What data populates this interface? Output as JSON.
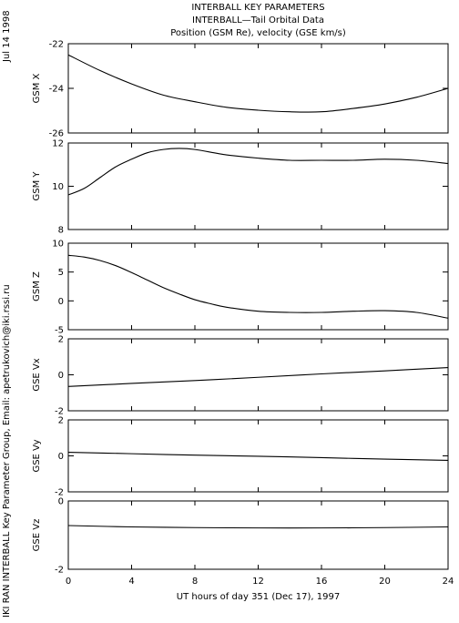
{
  "titles": {
    "line1": "INTERBALL KEY PARAMETERS",
    "line2": "INTERBALL—Tail Orbital Data",
    "line3": "Position (GSM Re), velocity (GSE km/s)"
  },
  "side_labels": {
    "date": "Jul 14 1998",
    "credit": "IKI RAN INTERBALL Key Parameter Group, Email: apetrukovich@iki.rssi.ru"
  },
  "chart_data": [
    {
      "type": "line",
      "ylabel": "GSM X",
      "ylim": [
        -26,
        -22
      ],
      "yticks": [
        "-22",
        "-24",
        "-26"
      ],
      "xlim": [
        0,
        24
      ],
      "x": [
        0,
        2,
        4,
        6,
        8,
        10,
        12,
        14,
        16,
        18,
        20,
        22,
        24
      ],
      "values": [
        -22.5,
        -23.2,
        -23.8,
        -24.3,
        -24.6,
        -24.85,
        -24.98,
        -25.05,
        -25.05,
        -24.9,
        -24.7,
        -24.4,
        -24.0
      ]
    },
    {
      "type": "line",
      "ylabel": "GSM Y",
      "ylim": [
        8,
        12
      ],
      "yticks": [
        "12",
        "10",
        "8"
      ],
      "xlim": [
        0,
        24
      ],
      "x": [
        0,
        1,
        2,
        3,
        4,
        5,
        6,
        7,
        8,
        10,
        12,
        14,
        16,
        18,
        20,
        22,
        24
      ],
      "values": [
        9.6,
        9.9,
        10.4,
        10.9,
        11.25,
        11.55,
        11.7,
        11.75,
        11.7,
        11.45,
        11.3,
        11.2,
        11.2,
        11.2,
        11.25,
        11.2,
        11.05
      ]
    },
    {
      "type": "line",
      "ylabel": "GSM Z",
      "ylim": [
        -5,
        10
      ],
      "yticks": [
        "10",
        "5",
        "0",
        "-5"
      ],
      "xlim": [
        0,
        24
      ],
      "x": [
        0,
        1,
        2,
        3,
        4,
        5,
        6,
        7,
        8,
        9,
        10,
        12,
        14,
        16,
        18,
        20,
        22,
        24
      ],
      "values": [
        7.9,
        7.6,
        7.0,
        6.1,
        4.9,
        3.6,
        2.3,
        1.2,
        0.2,
        -0.5,
        -1.1,
        -1.8,
        -2.0,
        -2.0,
        -1.8,
        -1.7,
        -2.0,
        -3.0
      ]
    },
    {
      "type": "line",
      "ylabel": "GSE Vx",
      "ylim": [
        -2,
        2
      ],
      "yticks": [
        "2",
        "0",
        "-2"
      ],
      "xlim": [
        0,
        24
      ],
      "x": [
        0,
        4,
        8,
        12,
        16,
        20,
        24
      ],
      "values": [
        -0.65,
        -0.48,
        -0.32,
        -0.14,
        0.05,
        0.22,
        0.4
      ]
    },
    {
      "type": "line",
      "ylabel": "GSE Vy",
      "ylim": [
        -2,
        2
      ],
      "yticks": [
        "2",
        "0",
        "-2"
      ],
      "xlim": [
        0,
        24
      ],
      "x": [
        0,
        4,
        8,
        12,
        16,
        20,
        24
      ],
      "values": [
        0.2,
        0.12,
        0.04,
        -0.02,
        -0.1,
        -0.18,
        -0.25
      ]
    },
    {
      "type": "line",
      "ylabel": "GSE Vz",
      "ylim": [
        -2,
        0
      ],
      "yticks": [
        "0",
        "-2"
      ],
      "xlim": [
        0,
        24
      ],
      "x": [
        0,
        4,
        8,
        12,
        16,
        20,
        24
      ],
      "values": [
        -0.72,
        -0.76,
        -0.78,
        -0.79,
        -0.79,
        -0.78,
        -0.76
      ]
    }
  ],
  "x_axis": {
    "ticks": [
      0,
      4,
      8,
      12,
      16,
      20,
      24
    ],
    "label": "UT hours of day 351 (Dec 17), 1997"
  }
}
